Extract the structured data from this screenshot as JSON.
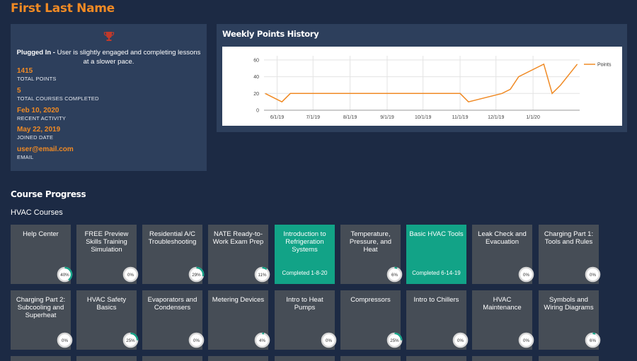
{
  "user": {
    "name": "First Last Name",
    "status_label": "Plugged In -",
    "status_desc": "User is slightly engaged and completing lessons at a slower pace.",
    "stats": [
      {
        "value": "1415",
        "label": "TOTAL POINTS"
      },
      {
        "value": "5",
        "label": "TOTAL COURSES COMPLETED"
      },
      {
        "value": "Feb 10, 2020",
        "label": "RECENT ACTIVITY"
      },
      {
        "value": "May 22, 2019",
        "label": "JOINED DATE"
      },
      {
        "value": "user@email.com",
        "label": "EMAIL"
      }
    ],
    "icon": "trophy-icon"
  },
  "chart": {
    "title": "Weekly Points History"
  },
  "chart_data": {
    "type": "line",
    "title": "",
    "xlabel": "",
    "ylabel": "",
    "ylim": [
      0,
      65
    ],
    "yticks": [
      0,
      20,
      40,
      60
    ],
    "xticks": [
      "6/1/19",
      "7/1/19",
      "8/1/19",
      "9/1/19",
      "10/1/19",
      "11/1/19",
      "12/1/19",
      "1/1/20"
    ],
    "grid": true,
    "legend": "right",
    "series": [
      {
        "name": "Points",
        "color": "#f08a24",
        "x": [
          "5/22/19",
          "6/5/19",
          "6/12/19",
          "11/1/19",
          "11/8/19",
          "12/6/19",
          "12/13/19",
          "12/20/19",
          "1/10/20",
          "1/17/20",
          "1/24/20",
          "2/7/20"
        ],
        "y": [
          20,
          10,
          20,
          20,
          10,
          20,
          25,
          40,
          55,
          20,
          30,
          55
        ]
      }
    ]
  },
  "progress": {
    "section_title": "Course Progress",
    "group_title": "HVAC Courses",
    "accent": "#12a387",
    "completed_prefix": "Completed",
    "courses": [
      {
        "name": "Help Center",
        "pct": "40%"
      },
      {
        "name": "FREE Preview Skills Training Simulation",
        "pct": "0%"
      },
      {
        "name": "Residential A/C Troubleshooting",
        "pct": "29%"
      },
      {
        "name": "NATE Ready-to-Work Exam Prep",
        "pct": "11%"
      },
      {
        "name": "Introduction to Refrigeration Systems",
        "completed": "Completed 1-8-20"
      },
      {
        "name": "Temperature, Pressure, and Heat",
        "pct": "6%"
      },
      {
        "name": "Basic HVAC Tools",
        "completed": "Completed 6-14-19"
      },
      {
        "name": "Leak Check and Evacuation",
        "pct": "0%"
      },
      {
        "name": "Charging Part 1: Tools and Rules",
        "pct": "0%"
      },
      {
        "name": "Charging Part 2: Subcooling and Superheat",
        "pct": "0%"
      },
      {
        "name": "HVAC Safety Basics",
        "pct": "25%"
      },
      {
        "name": "Evaporators and Condensers",
        "pct": "0%"
      },
      {
        "name": "Metering Devices",
        "pct": "4%"
      },
      {
        "name": "Intro to Heat Pumps",
        "pct": "0%"
      },
      {
        "name": "Compressors",
        "pct": "25%"
      },
      {
        "name": "Intro to Chillers",
        "pct": "0%"
      },
      {
        "name": "HVAC Maintenance",
        "pct": "0%"
      },
      {
        "name": "Symbols and Wiring Diagrams",
        "pct": "6%"
      }
    ]
  }
}
